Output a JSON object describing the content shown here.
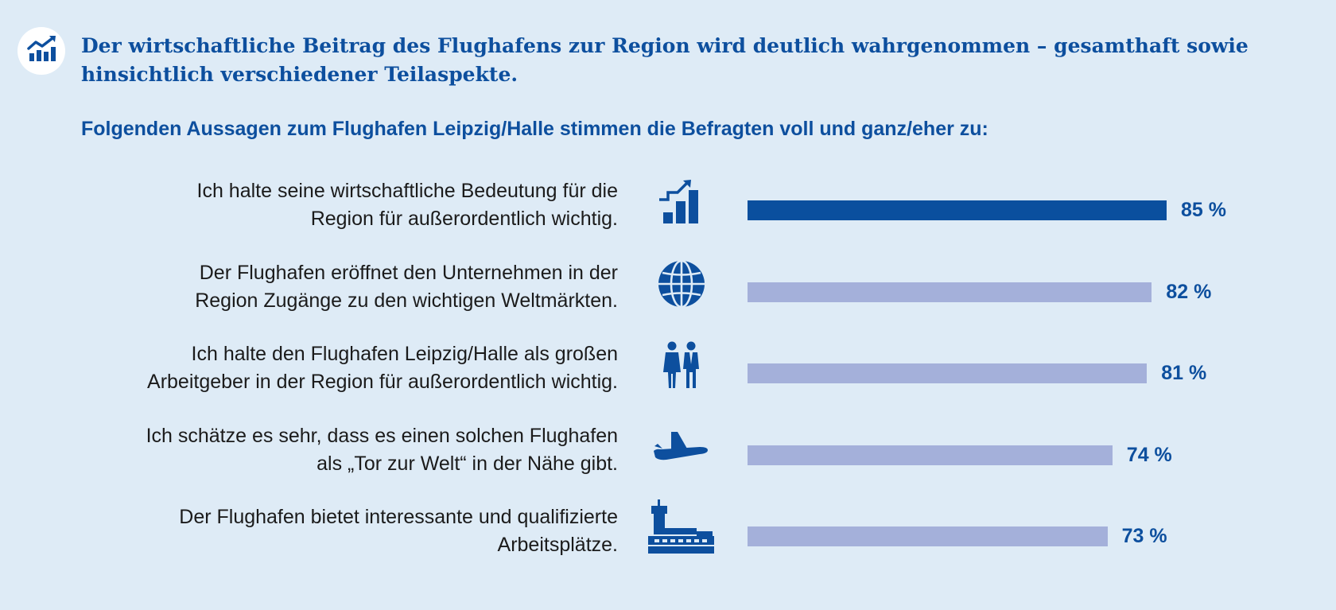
{
  "header": {
    "badge_icon": "chart-growth-icon",
    "title": "Der wirtschaftliche Beitrag des Flughafens zur Region wird deutlich wahrgenommen – gesamthaft sowie hinsichtlich verschiedener Teilaspekte.",
    "subtitle": "Folgenden Aussagen zum Flughafen Leipzig/Halle stimmen die Befragten voll und ganz/eher zu:"
  },
  "colors": {
    "background": "#deebf6",
    "accent": "#0d4f9e",
    "bar_highlight": "#0a4f9e",
    "bar_normal": "#a4b0da",
    "text": "#1b1b1b"
  },
  "chart_data": {
    "type": "bar",
    "orientation": "horizontal",
    "title": "Folgenden Aussagen zum Flughafen Leipzig/Halle stimmen die Befragten voll und ganz/eher zu:",
    "xlim": [
      0,
      100
    ],
    "unit": "%",
    "grid": false,
    "categories": [
      {
        "lines": [
          "Ich halte seine wirtschaftliche Bedeutung für die",
          "Region für außerordentlich wichtig."
        ],
        "value": 85,
        "label": "85 %",
        "icon": "growth-bars-icon",
        "highlight": true
      },
      {
        "lines": [
          "Der Flughafen eröffnet den Unternehmen in der",
          "Region Zugänge zu den wichtigen Weltmärkten."
        ],
        "value": 82,
        "label": "82 %",
        "icon": "globe-icon",
        "highlight": false
      },
      {
        "lines": [
          "Ich halte den Flughafen Leipzig/Halle als großen",
          "Arbeitgeber in der Region für außerordentlich wichtig."
        ],
        "value": 81,
        "label": "81 %",
        "icon": "employees-icon",
        "highlight": false
      },
      {
        "lines": [
          "Ich schätze es sehr, dass es einen solchen Flughafen",
          "als „Tor zur Welt“ in der Nähe gibt."
        ],
        "value": 74,
        "label": "74 %",
        "icon": "airplane-icon",
        "highlight": false
      },
      {
        "lines": [
          "Der Flughafen bietet interessante und qualifizierte",
          "Arbeitsplätze."
        ],
        "value": 73,
        "label": "73 %",
        "icon": "airport-tower-icon",
        "highlight": false
      }
    ]
  }
}
